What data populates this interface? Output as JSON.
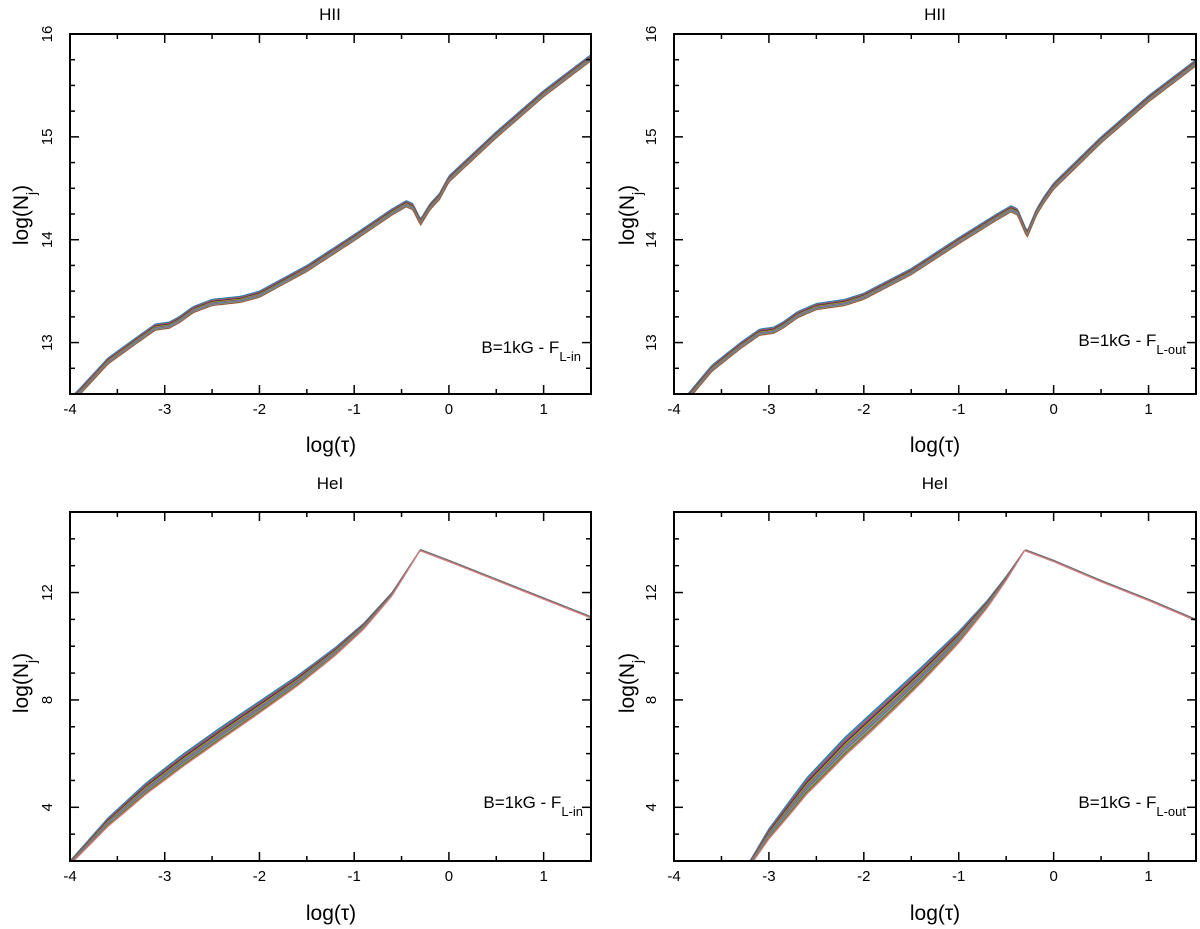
{
  "chart_data": [
    {
      "id": "tl",
      "type": "line",
      "title": "HII",
      "xlabel": "log(τ)",
      "ylabel_base": "log(N",
      "ylabel_sub": "j",
      "ylabel_tail": ")",
      "annotation": {
        "text": "B=1kG - F",
        "sub": "L-in"
      },
      "xlim": [
        -4,
        1.5
      ],
      "ylim": [
        12.5,
        16
      ],
      "xticks": [
        -4,
        -3,
        -2,
        -1,
        0,
        1
      ],
      "yticks": [
        13,
        14,
        15,
        16
      ],
      "band": {
        "n_lines": 12,
        "mode": "constant",
        "spread": 0.06
      },
      "x": [
        -4.2,
        -3.9,
        -3.6,
        -3.3,
        -3.1,
        -2.95,
        -2.85,
        -2.7,
        -2.5,
        -2.2,
        -2.0,
        -1.5,
        -1.0,
        -0.6,
        -0.45,
        -0.38,
        -0.3,
        -0.2,
        -0.1,
        0.0,
        0.5,
        1.0,
        1.5
      ],
      "y": [
        12.28,
        12.55,
        12.85,
        13.05,
        13.18,
        13.2,
        13.25,
        13.35,
        13.42,
        13.45,
        13.5,
        13.75,
        14.05,
        14.3,
        14.38,
        14.35,
        14.2,
        14.35,
        14.45,
        14.62,
        15.05,
        15.45,
        15.8
      ]
    },
    {
      "id": "tr",
      "type": "line",
      "title": "HII",
      "xlabel": "log(τ)",
      "ylabel_base": "log(N",
      "ylabel_sub": "j",
      "ylabel_tail": ")",
      "annotation": {
        "text": "B=1kG - F",
        "sub": "L-out"
      },
      "xlim": [
        -4,
        1.5
      ],
      "ylim": [
        12.5,
        16
      ],
      "xticks": [
        -4,
        -3,
        -2,
        -1,
        0,
        1
      ],
      "yticks": [
        13,
        14,
        15,
        16
      ],
      "band": {
        "n_lines": 12,
        "mode": "constant",
        "spread": 0.06
      },
      "x": [
        -4.2,
        -3.9,
        -3.6,
        -3.3,
        -3.1,
        -2.95,
        -2.85,
        -2.7,
        -2.5,
        -2.2,
        -2.0,
        -1.5,
        -1.0,
        -0.6,
        -0.45,
        -0.38,
        -0.28,
        -0.18,
        -0.1,
        0.0,
        0.5,
        1.0,
        1.5
      ],
      "y": [
        12.15,
        12.45,
        12.78,
        13.0,
        13.13,
        13.15,
        13.2,
        13.3,
        13.38,
        13.42,
        13.48,
        13.72,
        14.02,
        14.25,
        14.33,
        14.3,
        14.08,
        14.3,
        14.42,
        14.55,
        15.0,
        15.4,
        15.75
      ]
    },
    {
      "id": "bl",
      "type": "line",
      "title": "HeI",
      "xlabel": "log(τ)",
      "ylabel_base": "log(N",
      "ylabel_sub": "j",
      "ylabel_tail": ")",
      "annotation": {
        "text": "B=1kG - F",
        "sub": "L-in"
      },
      "xlim": [
        -4,
        1.5
      ],
      "ylim": [
        2,
        15
      ],
      "xticks": [
        -4,
        -3,
        -2,
        -1,
        0,
        1
      ],
      "yticks": [
        4,
        8,
        12
      ],
      "band": {
        "n_lines": 14,
        "mode": "converge",
        "x_converge": -0.3,
        "ratio": 0.055
      },
      "x": [
        -4.0,
        -3.6,
        -3.2,
        -2.8,
        -2.4,
        -2.0,
        -1.6,
        -1.2,
        -0.9,
        -0.6,
        -0.3,
        0.0,
        0.5,
        1.0,
        1.5
      ],
      "y": [
        2.0,
        3.6,
        4.9,
        6.0,
        7.0,
        7.95,
        8.9,
        9.95,
        10.85,
        12.0,
        13.6,
        13.2,
        12.5,
        11.8,
        11.1
      ]
    },
    {
      "id": "br",
      "type": "line",
      "title": "HeI",
      "xlabel": "log(τ)",
      "ylabel_base": "log(N",
      "ylabel_sub": "j",
      "ylabel_tail": ")",
      "annotation": {
        "text": "B=1kG - F",
        "sub": "L-out"
      },
      "xlim": [
        -4,
        1.5
      ],
      "ylim": [
        2,
        15
      ],
      "xticks": [
        -4,
        -3,
        -2,
        -1,
        0,
        1
      ],
      "yticks": [
        4,
        8,
        12
      ],
      "band": {
        "n_lines": 14,
        "mode": "converge",
        "x_converge": -0.3,
        "ratio": 0.075
      },
      "x": [
        -3.2,
        -3.0,
        -2.6,
        -2.2,
        -1.8,
        -1.4,
        -1.0,
        -0.7,
        -0.5,
        -0.3,
        0.0,
        0.5,
        1.0,
        1.5
      ],
      "y": [
        2.0,
        3.2,
        5.1,
        6.6,
        7.9,
        9.2,
        10.55,
        11.7,
        12.6,
        13.6,
        13.2,
        12.45,
        11.75,
        11.0
      ]
    }
  ],
  "colors": {
    "band_palette": [
      "#2e6bd1",
      "#1f9e89",
      "#d24a3a",
      "#7a4bb0",
      "#2a2a2a",
      "#d98c1f",
      "#3c9a3c",
      "#c44a9a",
      "#4a9ad8",
      "#8a5a2b",
      "#5dbbd0",
      "#a0522d",
      "#6b8e23",
      "#e07b91"
    ],
    "frame": "#000000"
  }
}
